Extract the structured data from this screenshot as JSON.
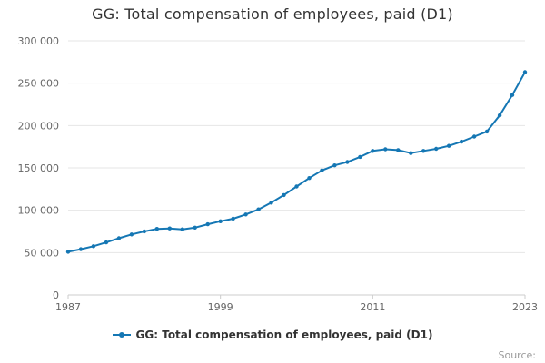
{
  "chart": {
    "source_label": "Source:"
  },
  "chart_data": {
    "type": "line",
    "title": "GG: Total compensation of employees, paid (D1)",
    "xlabel": "",
    "ylabel": "",
    "xlim": [
      1987,
      2023
    ],
    "ylim": [
      0,
      300000
    ],
    "x_ticks": [
      1987,
      1999,
      2011,
      2023
    ],
    "y_ticks": [
      0,
      50000,
      100000,
      150000,
      200000,
      250000,
      300000
    ],
    "grid": true,
    "legend_position": "bottom",
    "line_color": "#1577b4",
    "grid_color": "#e6e6e6",
    "axis_color": "#cccccc",
    "x": [
      1987,
      1988,
      1989,
      1990,
      1991,
      1992,
      1993,
      1994,
      1995,
      1996,
      1997,
      1998,
      1999,
      2000,
      2001,
      2002,
      2003,
      2004,
      2005,
      2006,
      2007,
      2008,
      2009,
      2010,
      2011,
      2012,
      2013,
      2014,
      2015,
      2016,
      2017,
      2018,
      2019,
      2020,
      2021,
      2022,
      2023
    ],
    "series": [
      {
        "name": "GG: Total compensation of employees, paid (D1)",
        "values": [
          51000,
          54000,
          57500,
          62000,
          67000,
          71500,
          75000,
          78000,
          78500,
          77500,
          79500,
          83500,
          87000,
          90000,
          95000,
          101000,
          109000,
          118000,
          128000,
          138000,
          147000,
          153000,
          157000,
          163000,
          170000,
          172000,
          171000,
          167500,
          170000,
          172500,
          176000,
          181000,
          187000,
          193000,
          212000,
          236000,
          263000
        ]
      }
    ]
  }
}
